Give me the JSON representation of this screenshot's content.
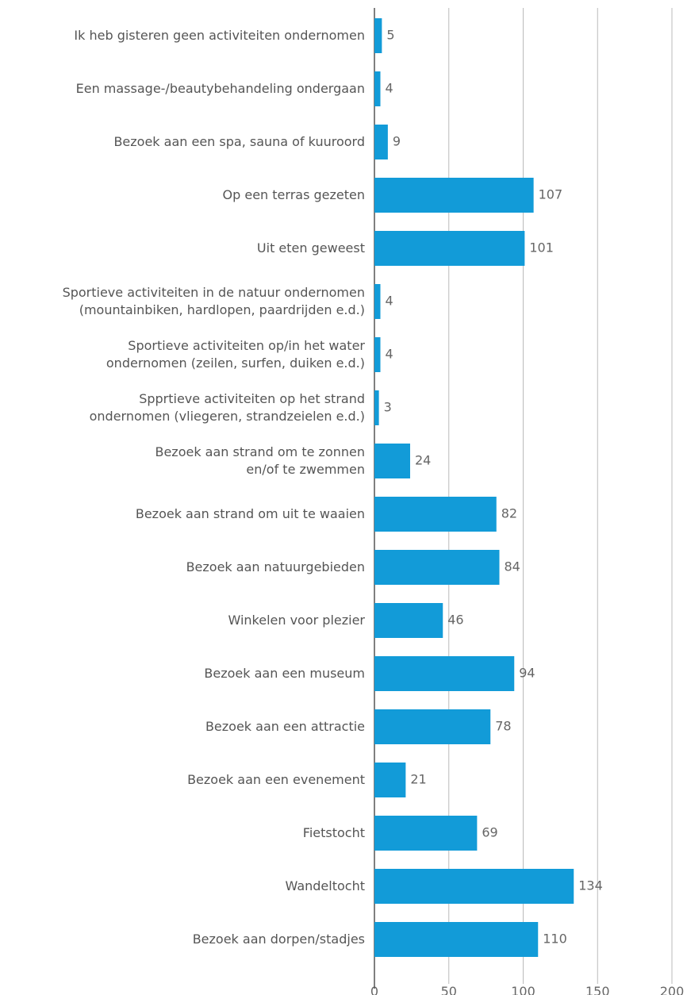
{
  "chart_data": {
    "type": "barh",
    "categories": [
      "Ik heb gisteren geen activiteiten ondernomen",
      "Een massage-/beautybehandeling ondergaan",
      "Bezoek aan een spa, sauna of kuuroord",
      "Op een terras gezeten",
      "Uit eten geweest",
      "Sportieve activiteiten in de natuur ondernomen\n(mountainbiken, hardlopen, paardrijden e.d.)",
      "Sportieve activiteiten op/in het water\nondernomen (zeilen, surfen, duiken e.d.)",
      "Spprtieve activiteiten op het strand\nondernomen (vliegeren, strandzeielen e.d.)",
      "Bezoek aan strand om te zonnen\nen/of te zwemmen",
      "Bezoek aan strand om uit te waaien",
      "Bezoek aan natuurgebieden",
      "Winkelen voor plezier",
      "Bezoek aan een museum",
      "Bezoek aan een attractie",
      "Bezoek aan een evenement",
      "Fietstocht",
      "Wandeltocht",
      "Bezoek aan dorpen/stadjes"
    ],
    "values": [
      5,
      4,
      9,
      107,
      101,
      4,
      4,
      3,
      24,
      82,
      84,
      46,
      94,
      78,
      21,
      69,
      134,
      110
    ],
    "color": "#129bd8",
    "xlim": [
      0,
      200
    ],
    "xticks": [
      0,
      50,
      100,
      150,
      200
    ],
    "grid": true
  }
}
